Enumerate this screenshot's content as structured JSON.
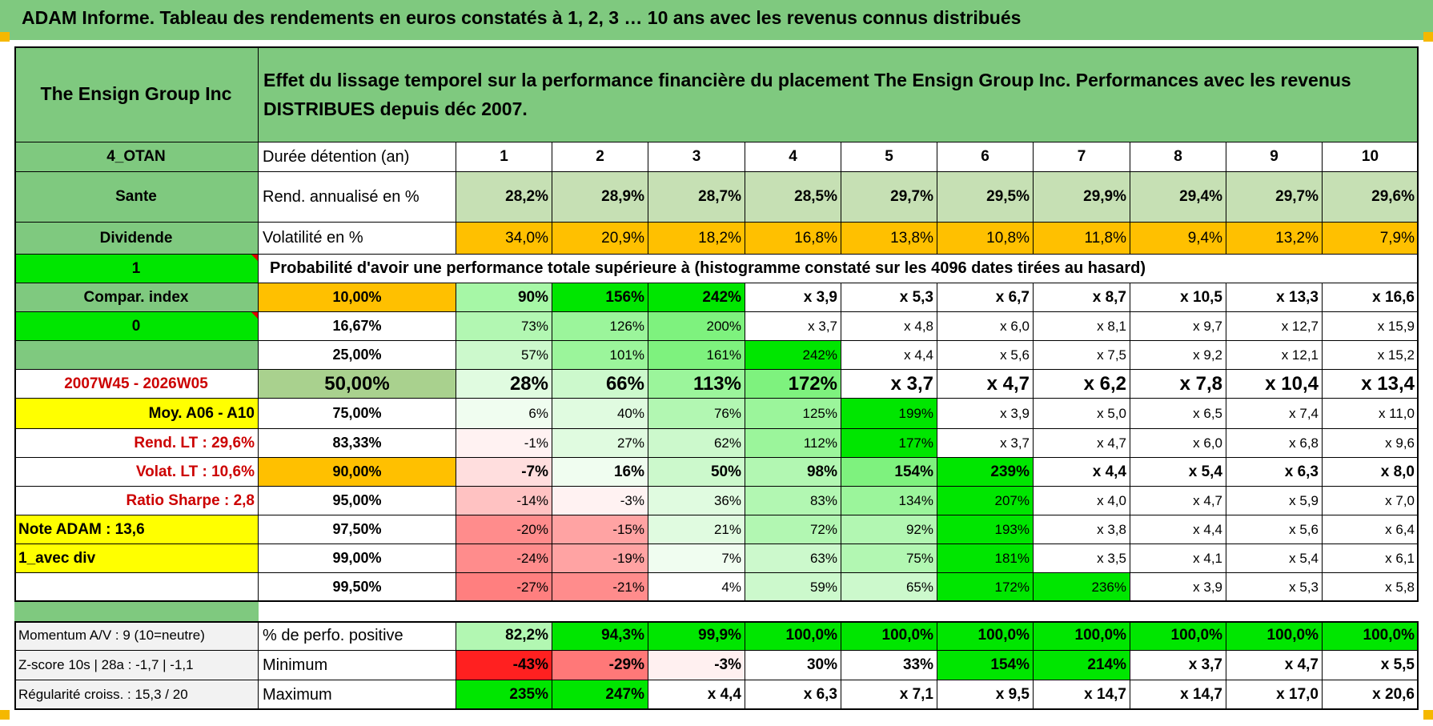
{
  "report_title": "ADAM Informe. Tableau des rendements en euros constatés à 1, 2, 3 … 10 ans avec les revenus connus distribués",
  "header": {
    "company": "The Ensign Group Inc",
    "description": "Effet du lissage temporel sur la performance financière du placement The Ensign Group Inc. Performances avec les revenus DISTRIBUES depuis déc 2007."
  },
  "left_labels": [
    "4_OTAN",
    "Sante",
    "Dividende",
    "1",
    "Compar. index",
    "0",
    "",
    "2007W45 - 2026W05",
    "Moy. A06 - A10",
    "Rend. LT :    29,6%",
    "Volat. LT :    10,6%",
    "Ratio Sharpe :    2,8",
    "Note ADAM : 13,6",
    "1_avec div",
    ""
  ],
  "years": [
    "1",
    "2",
    "3",
    "4",
    "5",
    "6",
    "7",
    "8",
    "9",
    "10"
  ],
  "row_labels": {
    "duration": "Durée détention (an)",
    "return": "Rend. annualisé en %",
    "volatility": "Volatilité en %",
    "probability": "Probabilité d'avoir une performance totale supérieure à (histogramme constaté sur les 4096 dates tirées au hasard)"
  },
  "annual_return": [
    "28,2%",
    "28,9%",
    "28,7%",
    "28,5%",
    "29,7%",
    "29,5%",
    "29,9%",
    "29,4%",
    "29,7%",
    "29,6%"
  ],
  "volatility": [
    "34,0%",
    "20,9%",
    "18,2%",
    "16,8%",
    "13,8%",
    "10,8%",
    "11,8%",
    "9,4%",
    "13,2%",
    "7,9%"
  ],
  "percentile_rows": [
    {
      "p": "10,00%",
      "v": [
        "90%",
        "156%",
        "242%",
        "x 3,9",
        "x 5,3",
        "x 6,7",
        "x 8,7",
        "x 10,5",
        "x 13,3",
        "x 16,6"
      ]
    },
    {
      "p": "16,67%",
      "v": [
        "73%",
        "126%",
        "200%",
        "x 3,7",
        "x 4,8",
        "x 6,0",
        "x 8,1",
        "x 9,7",
        "x 12,7",
        "x 15,9"
      ]
    },
    {
      "p": "25,00%",
      "v": [
        "57%",
        "101%",
        "161%",
        "242%",
        "x 4,4",
        "x 5,6",
        "x 7,5",
        "x 9,2",
        "x 12,1",
        "x 15,2"
      ]
    },
    {
      "p": "50,00%",
      "v": [
        "28%",
        "66%",
        "113%",
        "172%",
        "x 3,7",
        "x 4,7",
        "x 6,2",
        "x 7,8",
        "x 10,4",
        "x 13,4"
      ]
    },
    {
      "p": "75,00%",
      "v": [
        "6%",
        "40%",
        "76%",
        "125%",
        "199%",
        "x 3,9",
        "x 5,0",
        "x 6,5",
        "x 7,4",
        "x 11,0"
      ]
    },
    {
      "p": "83,33%",
      "v": [
        "-1%",
        "27%",
        "62%",
        "112%",
        "177%",
        "x 3,7",
        "x 4,7",
        "x 6,0",
        "x 6,8",
        "x 9,6"
      ]
    },
    {
      "p": "90,00%",
      "v": [
        "-7%",
        "16%",
        "50%",
        "98%",
        "154%",
        "239%",
        "x 4,4",
        "x 5,4",
        "x 6,3",
        "x 8,0"
      ]
    },
    {
      "p": "95,00%",
      "v": [
        "-14%",
        "-3%",
        "36%",
        "83%",
        "134%",
        "207%",
        "x 4,0",
        "x 4,7",
        "x 5,9",
        "x 7,0"
      ]
    },
    {
      "p": "97,50%",
      "v": [
        "-20%",
        "-15%",
        "21%",
        "72%",
        "92%",
        "193%",
        "x 3,8",
        "x 4,4",
        "x 5,6",
        "x 6,4"
      ]
    },
    {
      "p": "99,00%",
      "v": [
        "-24%",
        "-19%",
        "7%",
        "63%",
        "75%",
        "181%",
        "x 3,5",
        "x 4,1",
        "x 5,4",
        "x 6,1"
      ]
    },
    {
      "p": "99,50%",
      "v": [
        "-27%",
        "-21%",
        "4%",
        "59%",
        "65%",
        "172%",
        "236%",
        "x 3,9",
        "x 5,3",
        "x 5,8"
      ]
    }
  ],
  "bottom_rows": [
    {
      "left": "Momentum A/V : 9 (10=neutre)",
      "label": "% de perfo. positive",
      "v": [
        "82,2%",
        "94,3%",
        "99,9%",
        "100,0%",
        "100,0%",
        "100,0%",
        "100,0%",
        "100,0%",
        "100,0%",
        "100,0%"
      ]
    },
    {
      "left": "Z-score 10s | 28a : -1,7 | -1,1",
      "label": "Minimum",
      "v": [
        "-43%",
        "-29%",
        "-3%",
        "30%",
        "33%",
        "154%",
        "214%",
        "x 3,7",
        "x 4,7",
        "x 5,5"
      ]
    },
    {
      "left": "Régularité croiss. : 15,3 / 20",
      "label": "Maximum",
      "v": [
        "235%",
        "247%",
        "x 4,4",
        "x 6,3",
        "x 7,1",
        "x 9,5",
        "x 14,7",
        "x 14,7",
        "x 17,0",
        "x 20,6"
      ]
    }
  ],
  "colors": {
    "green_header": "#7fc97f",
    "bright_green": "#00e600",
    "orange": "#ffc000",
    "yellow": "#ffff00",
    "light_green_return": "#c6e0b4",
    "mid_green_median": "#a9d18e",
    "red_text": "#cc0000"
  }
}
